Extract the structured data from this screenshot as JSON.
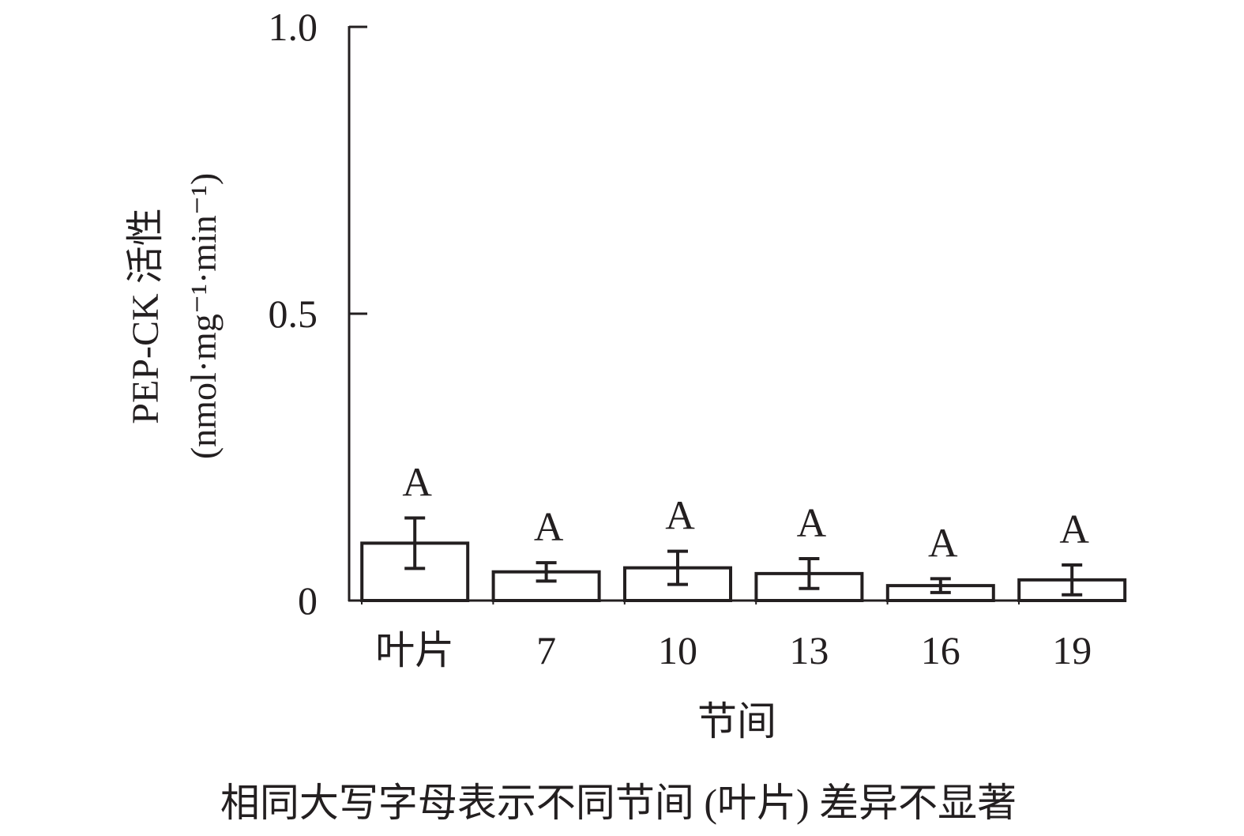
{
  "chart_data": {
    "type": "bar",
    "title": "",
    "xlabel": "节间",
    "ylabel_line1": "PEP-CK 活性",
    "ylabel_line2": "(nmol·mg⁻¹·min⁻¹)",
    "categories": [
      "叶片",
      "7",
      "10",
      "13",
      "16",
      "19"
    ],
    "values": [
      0.1,
      0.05,
      0.057,
      0.047,
      0.026,
      0.036
    ],
    "errors": [
      0.044,
      0.016,
      0.029,
      0.026,
      0.012,
      0.026
    ],
    "significance_letters": [
      "A",
      "A",
      "A",
      "A",
      "A",
      "A"
    ],
    "ylim": [
      0,
      1.0
    ],
    "yticks": [
      0,
      0.5,
      1.0
    ],
    "ytick_labels": [
      "0",
      "0.5",
      "1.0"
    ],
    "grid": false,
    "bar_fill": "#ffffff",
    "bar_stroke": "#231f20",
    "note": "相同大写字母表示不同节间 (叶片) 差异不显著"
  }
}
